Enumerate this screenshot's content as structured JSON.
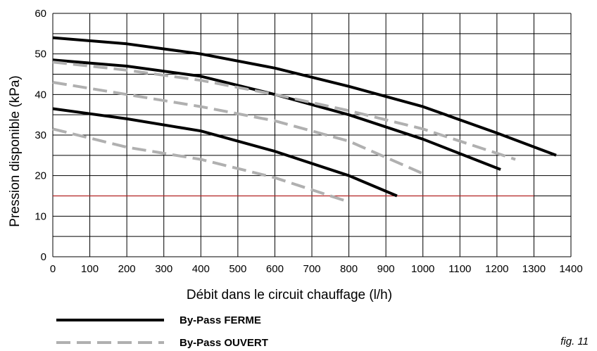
{
  "chart_data": {
    "type": "line",
    "title": "",
    "xlabel": "Débit dans le circuit chauffage (l/h)",
    "ylabel": "Pression disponible (kPa)",
    "xlim": [
      0,
      1400
    ],
    "ylim": [
      0,
      60
    ],
    "x_ticks": [
      0,
      100,
      200,
      300,
      400,
      500,
      600,
      700,
      800,
      900,
      1000,
      1100,
      1200,
      1300,
      1400
    ],
    "y_ticks": [
      0,
      10,
      20,
      30,
      40,
      50,
      60
    ],
    "x_gridlines": [
      0,
      100,
      200,
      300,
      400,
      500,
      600,
      700,
      800,
      900,
      1000,
      1100,
      1200,
      1300,
      1400
    ],
    "y_gridlines": [
      0,
      5,
      10,
      15,
      20,
      25,
      30,
      35,
      40,
      45,
      50,
      55,
      60
    ],
    "grid": true,
    "legend_position": "bottom-left",
    "reference_line": {
      "y": 15,
      "x_range": [
        0,
        1300
      ],
      "color": "#b22222"
    },
    "series": [
      {
        "legend_group": "ferme",
        "color": "#000000",
        "style": "solid",
        "points": [
          [
            0,
            54
          ],
          [
            200,
            52.5
          ],
          [
            400,
            50
          ],
          [
            600,
            46.5
          ],
          [
            800,
            42
          ],
          [
            1000,
            37
          ],
          [
            1200,
            30.5
          ],
          [
            1360,
            25
          ]
        ]
      },
      {
        "legend_group": "ferme",
        "color": "#000000",
        "style": "solid",
        "points": [
          [
            0,
            48.5
          ],
          [
            200,
            47
          ],
          [
            400,
            44.5
          ],
          [
            600,
            40
          ],
          [
            800,
            35
          ],
          [
            1000,
            29
          ],
          [
            1210,
            21.5
          ]
        ]
      },
      {
        "legend_group": "ferme",
        "color": "#000000",
        "style": "solid",
        "points": [
          [
            0,
            36.5
          ],
          [
            200,
            34
          ],
          [
            400,
            31
          ],
          [
            600,
            26
          ],
          [
            800,
            20
          ],
          [
            930,
            15
          ]
        ]
      },
      {
        "legend_group": "ouvert",
        "color": "#b0b0b0",
        "style": "dashed",
        "points": [
          [
            0,
            48
          ],
          [
            200,
            46
          ],
          [
            400,
            43.5
          ],
          [
            600,
            40
          ],
          [
            800,
            36
          ],
          [
            1000,
            31.5
          ],
          [
            1250,
            24
          ]
        ]
      },
      {
        "legend_group": "ouvert",
        "color": "#b0b0b0",
        "style": "dashed",
        "points": [
          [
            0,
            43
          ],
          [
            200,
            40
          ],
          [
            400,
            37
          ],
          [
            600,
            33.5
          ],
          [
            800,
            28.5
          ],
          [
            1000,
            20.5
          ]
        ]
      },
      {
        "legend_group": "ouvert",
        "color": "#b0b0b0",
        "style": "dashed",
        "points": [
          [
            0,
            31.5
          ],
          [
            200,
            27
          ],
          [
            400,
            24
          ],
          [
            600,
            19.5
          ],
          [
            800,
            13.5
          ]
        ]
      }
    ],
    "legend": [
      {
        "group": "ferme",
        "label": "By-Pass  FERME",
        "color": "#000000",
        "style": "solid"
      },
      {
        "group": "ouvert",
        "label": "By-Pass  OUVERT",
        "color": "#b0b0b0",
        "style": "dashed"
      }
    ]
  },
  "fig_label": "fig. 11"
}
